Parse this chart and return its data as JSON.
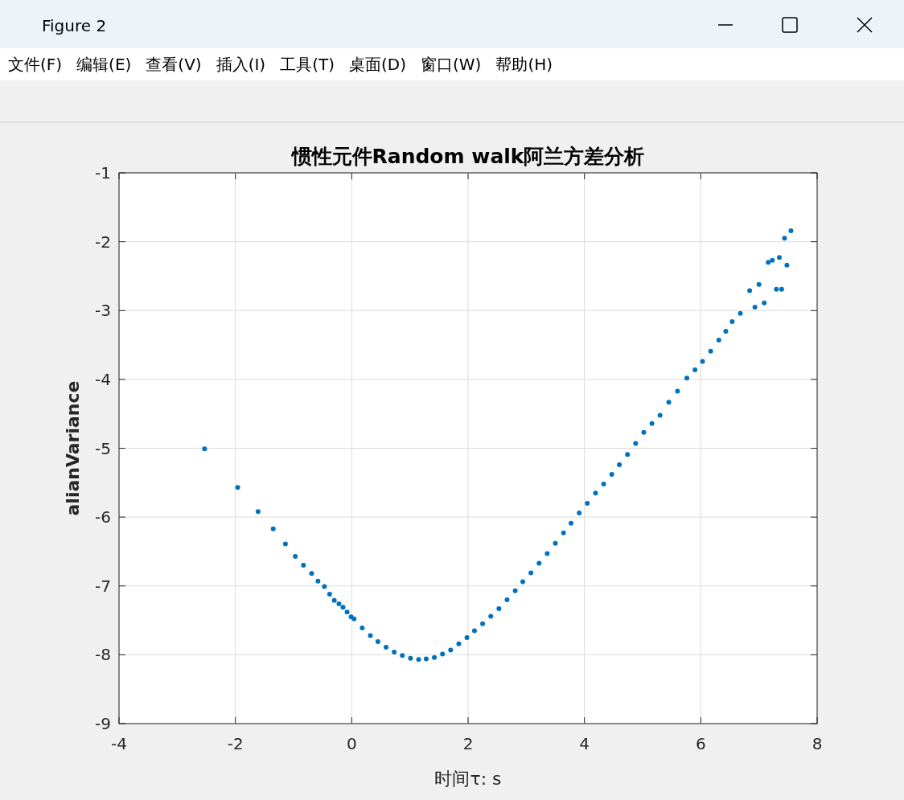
{
  "chart_data": {
    "type": "scatter",
    "title": "惯性元件Random walk阿兰方差分析",
    "xlabel": "时间τ: s",
    "ylabel": "alianVariance",
    "annotations": [
      "Figure 2",
      "文件(F)",
      "编辑(E)",
      "查看(V)",
      "插入(I)",
      "工具(T)",
      "桌面(D)",
      "窗口(W)",
      "帮助(H)"
    ],
    "x": [
      -2.53,
      -1.96,
      -1.61,
      -1.35,
      -1.14,
      -0.97,
      -0.83,
      -0.69,
      -0.58,
      -0.47,
      -0.38,
      -0.3,
      -0.22,
      -0.15,
      -0.08,
      -0.01,
      0.04,
      0.18,
      0.32,
      0.45,
      0.59,
      0.73,
      0.87,
      1.01,
      1.15,
      1.28,
      1.42,
      1.56,
      1.7,
      1.84,
      1.98,
      2.11,
      2.25,
      2.39,
      2.53,
      2.67,
      2.81,
      2.94,
      3.08,
      3.22,
      3.36,
      3.5,
      3.64,
      3.77,
      3.91,
      4.05,
      4.19,
      4.33,
      4.47,
      4.6,
      4.74,
      4.88,
      5.02,
      5.16,
      5.3,
      5.45,
      5.6,
      5.76,
      5.9,
      6.03,
      6.17,
      6.31,
      6.43,
      6.54,
      6.68,
      6.84,
      6.93,
      7.0,
      7.09,
      7.16,
      7.23,
      7.3,
      7.35,
      7.39,
      7.44,
      7.48,
      7.55
    ],
    "values": [
      -5.01,
      -5.57,
      -5.92,
      -6.17,
      -6.39,
      -6.57,
      -6.7,
      -6.82,
      -6.93,
      -7.01,
      -7.12,
      -7.21,
      -7.26,
      -7.31,
      -7.38,
      -7.45,
      -7.48,
      -7.61,
      -7.72,
      -7.81,
      -7.89,
      -7.96,
      -8.01,
      -8.05,
      -8.07,
      -8.06,
      -8.04,
      -7.99,
      -7.93,
      -7.84,
      -7.75,
      -7.65,
      -7.55,
      -7.44,
      -7.33,
      -7.2,
      -7.07,
      -6.94,
      -6.81,
      -6.67,
      -6.53,
      -6.38,
      -6.23,
      -6.09,
      -5.94,
      -5.8,
      -5.65,
      -5.52,
      -5.38,
      -5.24,
      -5.09,
      -4.93,
      -4.77,
      -4.64,
      -4.52,
      -4.33,
      -4.17,
      -3.98,
      -3.86,
      -3.74,
      -3.59,
      -3.43,
      -3.3,
      -3.16,
      -3.04,
      -2.71,
      -2.95,
      -2.62,
      -2.89,
      -2.3,
      -2.27,
      -2.69,
      -2.23,
      -2.69,
      -1.95,
      -2.34,
      -1.84
    ],
    "color": "#0072bd",
    "marker": "circle",
    "grid": true,
    "xlim": [
      -4,
      8
    ],
    "ylim": [
      -9,
      -1
    ],
    "xticks": [
      -4,
      -2,
      0,
      2,
      4,
      6,
      8
    ],
    "yticks": [
      -9,
      -8,
      -7,
      -6,
      -5,
      -4,
      -3,
      -2,
      -1
    ]
  }
}
